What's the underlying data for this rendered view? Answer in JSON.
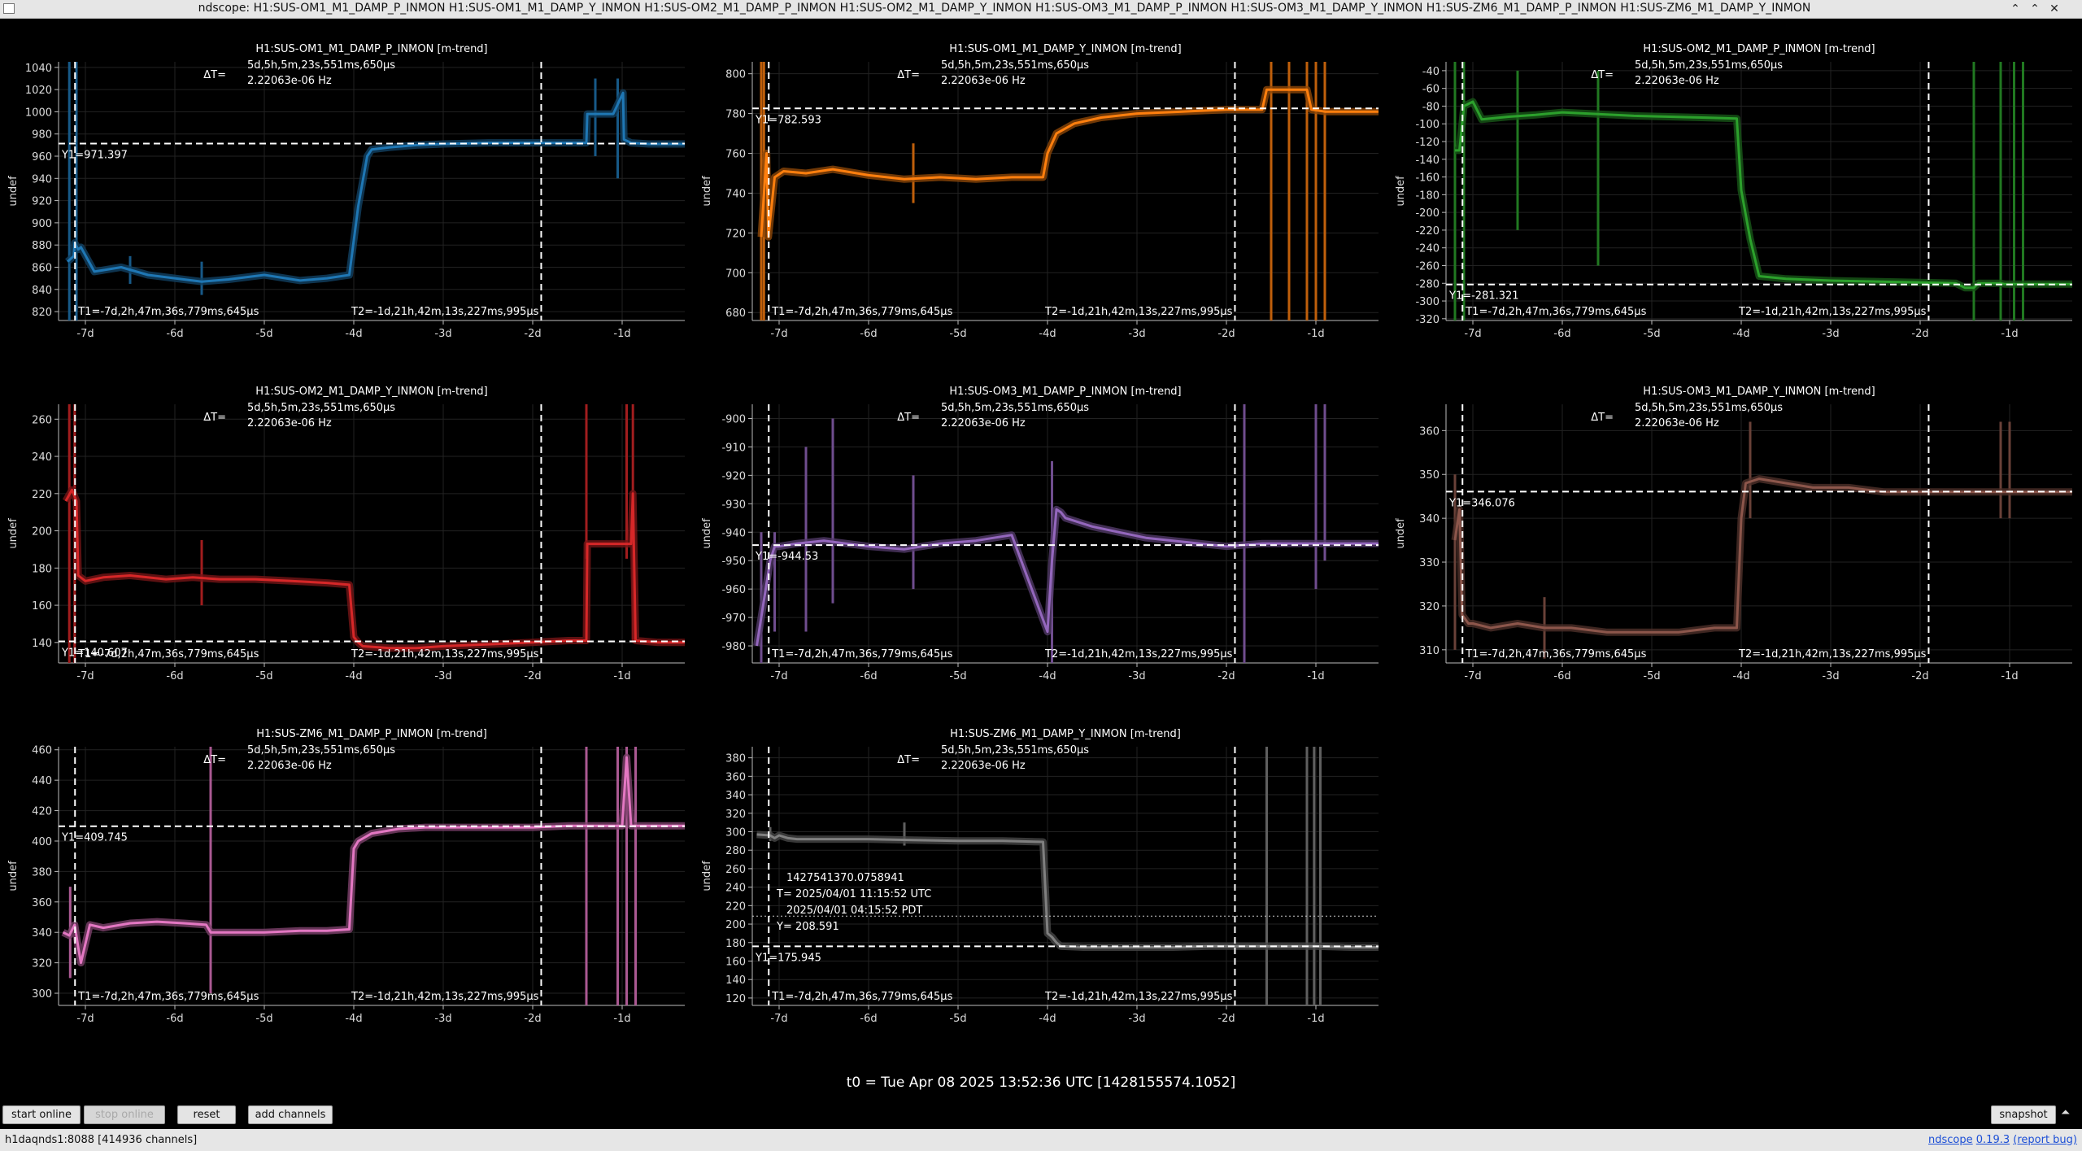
{
  "window": {
    "title": "ndscope: H1:SUS-OM1_M1_DAMP_P_INMON H1:SUS-OM1_M1_DAMP_Y_INMON H1:SUS-OM2_M1_DAMP_P_INMON H1:SUS-OM2_M1_DAMP_Y_INMON H1:SUS-OM3_M1_DAMP_P_INMON H1:SUS-OM3_M1_DAMP_Y_INMON H1:SUS-ZM6_M1_DAMP_P_INMON H1:SUS-ZM6_M1_DAMP_Y_INMON",
    "min_icon": "minimize-icon",
    "max_icon": "maximize-icon",
    "close_icon": "close-icon",
    "min_glyph": "⌃",
    "max_glyph": "⌃",
    "close_glyph": "✕"
  },
  "cursors": {
    "delta_label": "ΔT=",
    "delta_value": "5d,5h,5m,23s,551ms,650μs",
    "delta_freq": "2.22063e-06 Hz",
    "t1_label": "T1=-7d,2h,47m,36s,779ms,645μs",
    "t2_label": "T2=-1d,21h,42m,13s,227ms,995μs",
    "t1_day": -7.116,
    "t2_day": -1.905
  },
  "x_axis": {
    "min": -7.3,
    "max": -0.3,
    "ticks": [
      -7,
      -6,
      -5,
      -4,
      -3,
      -2,
      -1
    ],
    "tick_labels": [
      "-7d",
      "-6d",
      "-5d",
      "-4d",
      "-3d",
      "-2d",
      "-1d"
    ]
  },
  "ylabel": "undef",
  "chart_data": [
    {
      "type": "line",
      "title": "H1:SUS-OM1_M1_DAMP_P_INMON [m-trend]",
      "color": "#1f77b4",
      "ylim": [
        812,
        1045
      ],
      "yticks": [
        820,
        840,
        860,
        880,
        900,
        920,
        940,
        960,
        980,
        1000,
        1020,
        1040
      ],
      "y1": 971.397,
      "y1_label": "Y1=971.397",
      "series": [
        {
          "x": [
            -7.2,
            -7.13,
            -7.12,
            -7.08,
            -7.05,
            -6.9,
            -6.6,
            -6.3,
            -6.0,
            -5.7,
            -5.4,
            -5.0,
            -4.6,
            -4.3,
            -4.05,
            -3.95,
            -3.85,
            -3.8,
            -3.6,
            -3.3,
            -3.0,
            -2.5,
            -2.0,
            -1.6,
            -1.4,
            -1.39,
            -1.1,
            -0.99,
            -0.98,
            -0.9,
            -0.7,
            -0.3
          ],
          "y": [
            865,
            870,
            882,
            876,
            878,
            856,
            860,
            853,
            850,
            847,
            849,
            853,
            848,
            850,
            853,
            915,
            960,
            966,
            968,
            970,
            971,
            972,
            972,
            972,
            972,
            998,
            998,
            1017,
            975,
            972,
            971,
            971
          ]
        }
      ],
      "spikes": [
        {
          "x": -7.18,
          "low": 812,
          "high": 1045
        },
        {
          "x": -7.1,
          "low": 812,
          "high": 1045
        },
        {
          "x": -6.5,
          "low": 845,
          "high": 870
        },
        {
          "x": -5.7,
          "low": 835,
          "high": 865
        },
        {
          "x": -1.3,
          "low": 960,
          "high": 1030
        },
        {
          "x": -1.05,
          "low": 940,
          "high": 1030
        }
      ]
    },
    {
      "type": "line",
      "title": "H1:SUS-OM1_M1_DAMP_Y_INMON [m-trend]",
      "color": "#ff7f0e",
      "ylim": [
        676,
        806
      ],
      "yticks": [
        680,
        700,
        720,
        740,
        760,
        780,
        800
      ],
      "y1": 782.593,
      "y1_label": "Y1=782.593",
      "series": [
        {
          "x": [
            -7.2,
            -7.14,
            -7.12,
            -7.05,
            -6.95,
            -6.7,
            -6.4,
            -6.0,
            -5.6,
            -5.2,
            -4.8,
            -4.4,
            -4.05,
            -4.0,
            -3.9,
            -3.7,
            -3.4,
            -3.0,
            -2.5,
            -2.0,
            -1.6,
            -1.55,
            -1.1,
            -1.05,
            -0.9,
            -0.3
          ],
          "y": [
            718,
            760,
            718,
            748,
            751,
            750,
            752,
            749,
            747,
            748,
            747,
            748,
            748,
            760,
            770,
            775,
            778,
            780,
            781,
            782,
            782,
            792,
            792,
            782,
            781,
            781
          ]
        }
      ],
      "spikes": [
        {
          "x": -7.2,
          "low": 676,
          "high": 806
        },
        {
          "x": -7.17,
          "low": 676,
          "high": 806
        },
        {
          "x": -5.5,
          "low": 735,
          "high": 765
        },
        {
          "x": -1.5,
          "low": 676,
          "high": 806
        },
        {
          "x": -1.3,
          "low": 676,
          "high": 806
        },
        {
          "x": -1.1,
          "low": 676,
          "high": 806
        },
        {
          "x": -1.0,
          "low": 676,
          "high": 806
        },
        {
          "x": -0.9,
          "low": 676,
          "high": 806
        }
      ]
    },
    {
      "type": "line",
      "title": "H1:SUS-OM2_M1_DAMP_P_INMON [m-trend]",
      "color": "#2ca02c",
      "ylim": [
        -322,
        -30
      ],
      "yticks": [
        -320,
        -300,
        -280,
        -260,
        -240,
        -220,
        -200,
        -180,
        -160,
        -140,
        -120,
        -100,
        -80,
        -60,
        -40
      ],
      "y1": -281.321,
      "y1_label": "Y1=-281.321",
      "series": [
        {
          "x": [
            -7.2,
            -7.15,
            -7.1,
            -7.0,
            -6.9,
            -6.6,
            -6.3,
            -6.0,
            -5.6,
            -5.2,
            -4.8,
            -4.4,
            -4.05,
            -4.0,
            -3.9,
            -3.8,
            -3.5,
            -3.0,
            -2.5,
            -2.0,
            -1.6,
            -1.5,
            -1.4,
            -1.35,
            -1.1,
            -1.05,
            -0.9,
            -0.3
          ],
          "y": [
            -130,
            -130,
            -80,
            -75,
            -95,
            -92,
            -90,
            -87,
            -89,
            -91,
            -92,
            -93,
            -94,
            -175,
            -230,
            -272,
            -275,
            -277,
            -278,
            -279,
            -280,
            -285,
            -285,
            -280,
            -280,
            -281,
            -281,
            -281
          ]
        }
      ],
      "spikes": [
        {
          "x": -7.2,
          "low": -322,
          "high": -30
        },
        {
          "x": -7.1,
          "low": -322,
          "high": -30
        },
        {
          "x": -6.5,
          "low": -220,
          "high": -40
        },
        {
          "x": -5.6,
          "low": -260,
          "high": -40
        },
        {
          "x": -1.4,
          "low": -322,
          "high": -30
        },
        {
          "x": -1.1,
          "low": -322,
          "high": -30
        },
        {
          "x": -0.95,
          "low": -322,
          "high": -30
        },
        {
          "x": -0.85,
          "low": -322,
          "high": -30
        }
      ]
    },
    {
      "type": "line",
      "title": "H1:SUS-OM2_M1_DAMP_Y_INMON [m-trend]",
      "color": "#d62728",
      "ylim": [
        129,
        268
      ],
      "yticks": [
        140,
        160,
        180,
        200,
        220,
        240,
        260
      ],
      "y1": 140.607,
      "y1_label": "Y1=140.607",
      "series": [
        {
          "x": [
            -7.22,
            -7.15,
            -7.1,
            -7.08,
            -7.0,
            -6.8,
            -6.5,
            -6.1,
            -5.8,
            -5.5,
            -5.1,
            -4.7,
            -4.3,
            -4.05,
            -4.0,
            -3.95,
            -3.9,
            -3.6,
            -3.3,
            -3.0,
            -2.5,
            -2.0,
            -1.6,
            -1.4,
            -1.39,
            -0.9,
            -0.88,
            -0.85,
            -0.6,
            -0.3
          ],
          "y": [
            216,
            222,
            216,
            176,
            173,
            175,
            176,
            174,
            175,
            174,
            174,
            173,
            172,
            171,
            143,
            140,
            138,
            137,
            137,
            138,
            139,
            140,
            141,
            141,
            193,
            193,
            220,
            141,
            140,
            140
          ]
        }
      ],
      "spikes": [
        {
          "x": -7.18,
          "low": 129,
          "high": 268
        },
        {
          "x": -7.12,
          "low": 129,
          "high": 268
        },
        {
          "x": -5.7,
          "low": 160,
          "high": 195
        },
        {
          "x": -1.4,
          "low": 185,
          "high": 268
        },
        {
          "x": -0.95,
          "low": 185,
          "high": 268
        },
        {
          "x": -0.88,
          "low": 140,
          "high": 268
        }
      ]
    },
    {
      "type": "line",
      "title": "H1:SUS-OM3_M1_DAMP_P_INMON [m-trend]",
      "color": "#9467bd",
      "ylim": [
        -986,
        -895
      ],
      "yticks": [
        -980,
        -970,
        -960,
        -950,
        -940,
        -930,
        -920,
        -910,
        -900
      ],
      "y1": -944.53,
      "y1_label": "Y1=-944.53",
      "series": [
        {
          "x": [
            -7.25,
            -7.15,
            -7.1,
            -7.05,
            -7.0,
            -6.8,
            -6.5,
            -6.0,
            -5.6,
            -5.2,
            -4.8,
            -4.4,
            -4.0,
            -3.95,
            -3.9,
            -3.85,
            -3.8,
            -3.5,
            -3.2,
            -2.9,
            -2.6,
            -2.3,
            -2.0,
            -1.6,
            -1.3,
            -1.0,
            -0.6,
            -0.3
          ],
          "y": [
            -980,
            -960,
            -950,
            -945,
            -945,
            -944,
            -943,
            -945,
            -946,
            -944,
            -943,
            -941,
            -975,
            -950,
            -932,
            -933,
            -935,
            -938,
            -940,
            -942,
            -943,
            -944,
            -945,
            -944,
            -944,
            -944,
            -944,
            -944
          ]
        }
      ],
      "spikes": [
        {
          "x": -7.2,
          "low": -986,
          "high": -940
        },
        {
          "x": -7.05,
          "low": -975,
          "high": -940
        },
        {
          "x": -6.7,
          "low": -975,
          "high": -910
        },
        {
          "x": -6.4,
          "low": -965,
          "high": -900
        },
        {
          "x": -5.5,
          "low": -960,
          "high": -920
        },
        {
          "x": -3.95,
          "low": -986,
          "high": -915
        },
        {
          "x": -1.8,
          "low": -986,
          "high": -895
        },
        {
          "x": -1.0,
          "low": -960,
          "high": -895
        },
        {
          "x": -0.9,
          "low": -950,
          "high": -895
        }
      ]
    },
    {
      "type": "line",
      "title": "H1:SUS-OM3_M1_DAMP_Y_INMON [m-trend]",
      "color": "#8c564b",
      "ylim": [
        307,
        366
      ],
      "yticks": [
        310,
        320,
        330,
        340,
        350,
        360
      ],
      "y1": 346.076,
      "y1_label": "Y1=346.076",
      "series": [
        {
          "x": [
            -7.2,
            -7.15,
            -7.12,
            -7.05,
            -7.0,
            -6.8,
            -6.5,
            -6.2,
            -5.9,
            -5.5,
            -5.1,
            -4.7,
            -4.3,
            -4.05,
            -4.0,
            -3.95,
            -3.8,
            -3.5,
            -3.2,
            -2.8,
            -2.4,
            -2.0,
            -1.6,
            -1.2,
            -0.8,
            -0.3
          ],
          "y": [
            335,
            342,
            318,
            316,
            316,
            315,
            316,
            315,
            315,
            314,
            314,
            314,
            315,
            315,
            340,
            348,
            349,
            348,
            347,
            347,
            346,
            346,
            346,
            346,
            346,
            346
          ]
        }
      ],
      "spikes": [
        {
          "x": -7.2,
          "low": 310,
          "high": 350
        },
        {
          "x": -6.2,
          "low": 308,
          "high": 322
        },
        {
          "x": -3.9,
          "low": 340,
          "high": 362
        },
        {
          "x": -1.1,
          "low": 340,
          "high": 362
        },
        {
          "x": -1.0,
          "low": 340,
          "high": 362
        }
      ]
    },
    {
      "type": "line",
      "title": "H1:SUS-ZM6_M1_DAMP_P_INMON [m-trend]",
      "color": "#e377c2",
      "ylim": [
        292,
        462
      ],
      "yticks": [
        300,
        320,
        340,
        360,
        380,
        400,
        420,
        440,
        460
      ],
      "y1": 409.745,
      "y1_label": "Y1=409.745",
      "series": [
        {
          "x": [
            -7.25,
            -7.18,
            -7.12,
            -7.08,
            -7.05,
            -6.95,
            -6.8,
            -6.5,
            -6.2,
            -5.9,
            -5.65,
            -5.6,
            -5.3,
            -5.0,
            -4.6,
            -4.3,
            -4.05,
            -4.0,
            -3.95,
            -3.8,
            -3.5,
            -3.2,
            -2.8,
            -2.4,
            -2.0,
            -1.6,
            -1.3,
            -1.0,
            -0.95,
            -0.9,
            -0.7,
            -0.3
          ],
          "y": [
            340,
            338,
            345,
            330,
            320,
            345,
            343,
            346,
            347,
            346,
            345,
            340,
            340,
            340,
            341,
            341,
            342,
            395,
            400,
            405,
            408,
            409,
            409,
            409,
            409,
            410,
            410,
            410,
            455,
            410,
            410,
            410
          ]
        }
      ],
      "spikes": [
        {
          "x": -7.17,
          "low": 310,
          "high": 370
        },
        {
          "x": -5.6,
          "low": 300,
          "high": 462
        },
        {
          "x": -1.4,
          "low": 292,
          "high": 462
        },
        {
          "x": -1.05,
          "low": 292,
          "high": 462
        },
        {
          "x": -0.95,
          "low": 292,
          "high": 462
        },
        {
          "x": -0.85,
          "low": 292,
          "high": 462
        }
      ]
    },
    {
      "type": "line",
      "title": "H1:SUS-ZM6_M1_DAMP_Y_INMON [m-trend]",
      "color": "#7f7f7f",
      "ylim": [
        112,
        392
      ],
      "yticks": [
        120,
        140,
        160,
        180,
        200,
        220,
        240,
        260,
        280,
        300,
        320,
        340,
        360,
        380
      ],
      "y1": 175.945,
      "y1_label": "Y1=175.945",
      "y2": 208.591,
      "series": [
        {
          "x": [
            -7.25,
            -7.1,
            -7.05,
            -7.0,
            -6.9,
            -6.8,
            -6.5,
            -6.0,
            -5.5,
            -5.0,
            -4.5,
            -4.05,
            -4.0,
            -3.95,
            -3.9,
            -3.85,
            -3.6,
            -3.3,
            -3.0,
            -2.6,
            -2.2,
            -1.8,
            -1.4,
            -1.0,
            -0.6,
            -0.3
          ],
          "y": [
            297,
            296,
            293,
            296,
            293,
            292,
            292,
            292,
            291,
            290,
            290,
            289,
            190,
            186,
            180,
            176,
            175,
            175,
            175,
            175,
            176,
            176,
            176,
            176,
            175,
            175
          ]
        }
      ],
      "spikes": [
        {
          "x": -7.1,
          "low": 290,
          "high": 305
        },
        {
          "x": -5.6,
          "low": 285,
          "high": 310
        },
        {
          "x": -1.55,
          "low": 112,
          "high": 392
        },
        {
          "x": -1.1,
          "low": 112,
          "high": 392
        },
        {
          "x": -1.02,
          "low": 112,
          "high": 392
        },
        {
          "x": -0.95,
          "low": 112,
          "high": 392
        }
      ],
      "tooltip": [
        "1427541370.0758941",
        "T= 2025/04/01 11:15:52 UTC",
        "2025/04/01 04:15:52 PDT",
        "Y= 208.591"
      ]
    }
  ],
  "t0_label": "t0 = Tue Apr 08 2025 13:52:36 UTC [1428155574.1052]",
  "controls": {
    "start_online": "start online",
    "stop_online": "stop online",
    "reset": "reset",
    "add_channels": "add channels",
    "snapshot": "snapshot",
    "collapse_icon": "chevron-up-icon",
    "collapse_glyph": "⏶"
  },
  "status": {
    "server": "h1daqnds1:8088  [414936 channels]",
    "app": "ndscope",
    "version": "0.19.3",
    "report_bug": "(report bug)"
  }
}
